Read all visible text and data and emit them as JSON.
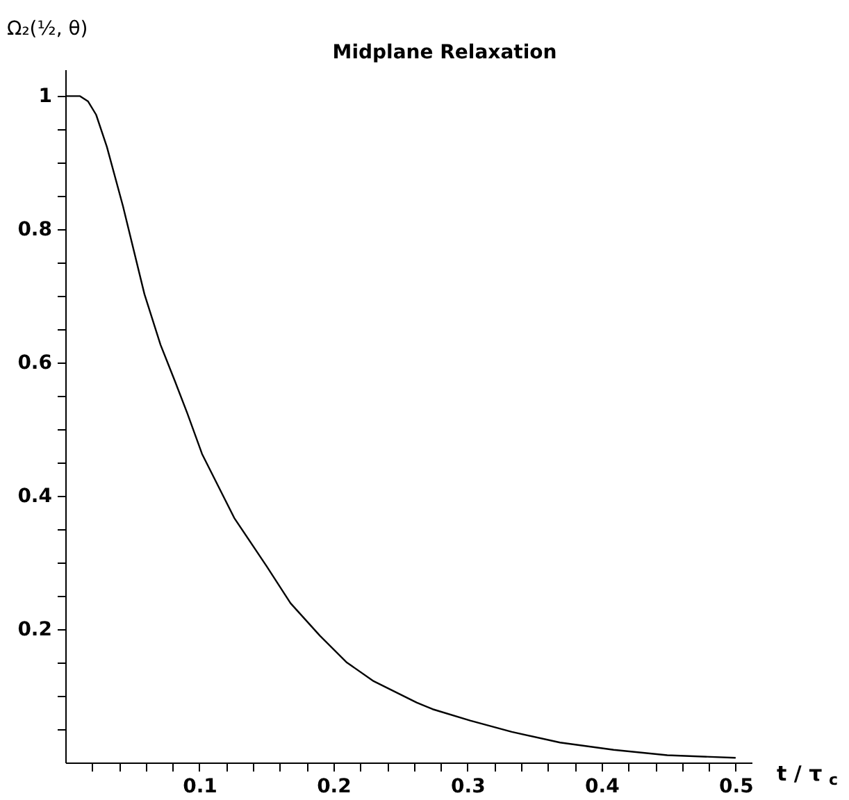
{
  "chart_data": {
    "type": "line",
    "title": "Midplane Relaxation",
    "xlabel": "t / τ$_{c}$",
    "ylabel": "Ω₂(½, θ)",
    "x": [
      0,
      0.011,
      0.017,
      0.023,
      0.031,
      0.043,
      0.059,
      0.071,
      0.082,
      0.091,
      0.102,
      0.126,
      0.15,
      0.168,
      0.19,
      0.21,
      0.23,
      0.262,
      0.274,
      0.302,
      0.333,
      0.369,
      0.409,
      0.449,
      0.5
    ],
    "series": [
      {
        "color": "#000000",
        "values": [
          1,
          1,
          0.992,
          0.972,
          0.924,
          0.835,
          0.703,
          0.627,
          0.571,
          0.524,
          0.463,
          0.367,
          0.295,
          0.239,
          0.19,
          0.15,
          0.122,
          0.09,
          0.08,
          0.063,
          0.046,
          0.03,
          0.019,
          0.011,
          0.007
        ]
      }
    ],
    "xlim": [
      0,
      0.512
    ],
    "ylim": [
      0,
      1.04
    ],
    "xticks": [
      {
        "value": 0.02,
        "label": null
      },
      {
        "value": 0.04,
        "label": null
      },
      {
        "value": 0.06,
        "label": null
      },
      {
        "value": 0.08,
        "label": null
      },
      0.1,
      {
        "value": 0.12,
        "label": null
      },
      {
        "value": 0.14,
        "label": null
      },
      {
        "value": 0.16,
        "label": null
      },
      {
        "value": 0.18,
        "label": null
      },
      0.2,
      {
        "value": 0.22,
        "label": null
      },
      {
        "value": 0.24,
        "label": null
      },
      {
        "value": 0.26,
        "label": null
      },
      {
        "value": 0.28,
        "label": null
      },
      0.3,
      {
        "value": 0.32,
        "label": null
      },
      {
        "value": 0.34,
        "label": null
      },
      {
        "value": 0.36,
        "label": null
      },
      {
        "value": 0.38,
        "label": null
      },
      0.4,
      {
        "value": 0.42,
        "label": null
      },
      {
        "value": 0.44,
        "label": null
      },
      {
        "value": 0.46,
        "label": null
      },
      {
        "value": 0.48,
        "label": null
      },
      0.5
    ],
    "yticks": [
      {
        "value": 0.05,
        "label": null
      },
      {
        "value": 0.1,
        "label": null
      },
      {
        "value": 0.15,
        "label": null
      },
      0.2,
      {
        "value": 0.25,
        "label": null
      },
      {
        "value": 0.3,
        "label": null
      },
      {
        "value": 0.35,
        "label": null
      },
      0.4,
      {
        "value": 0.45,
        "label": null
      },
      {
        "value": 0.5,
        "label": null
      },
      {
        "value": 0.55,
        "label": null
      },
      0.6,
      {
        "value": 0.65,
        "label": null
      },
      {
        "value": 0.7,
        "label": null
      },
      {
        "value": 0.75,
        "label": null
      },
      0.8,
      {
        "value": 0.85,
        "label": null
      },
      {
        "value": 0.9,
        "label": null
      },
      {
        "value": 0.95,
        "label": null
      },
      1
    ],
    "grid": false,
    "line_style": "solid",
    "marker": "none"
  }
}
